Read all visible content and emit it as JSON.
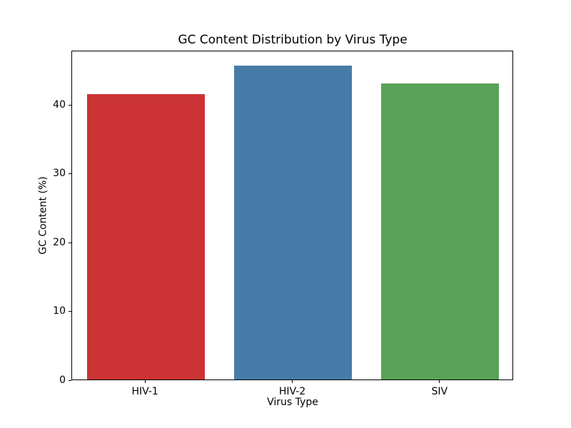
{
  "chart_data": {
    "type": "bar",
    "title": "GC Content Distribution by Virus Type",
    "xlabel": "Virus Type",
    "ylabel": "GC Content (%)",
    "categories": [
      "HIV-1",
      "HIV-2",
      "SIV"
    ],
    "values": [
      41.5,
      45.6,
      43.0
    ],
    "bar_colors": [
      "#cb3335",
      "#477ca8",
      "#59a257"
    ],
    "ylim": [
      0,
      47.9
    ],
    "yticks": [
      0,
      10,
      20,
      30,
      40
    ],
    "grid": false,
    "legend": "none",
    "frame": "full-box",
    "background_color": "#ffffff",
    "text_color": "#000000"
  }
}
